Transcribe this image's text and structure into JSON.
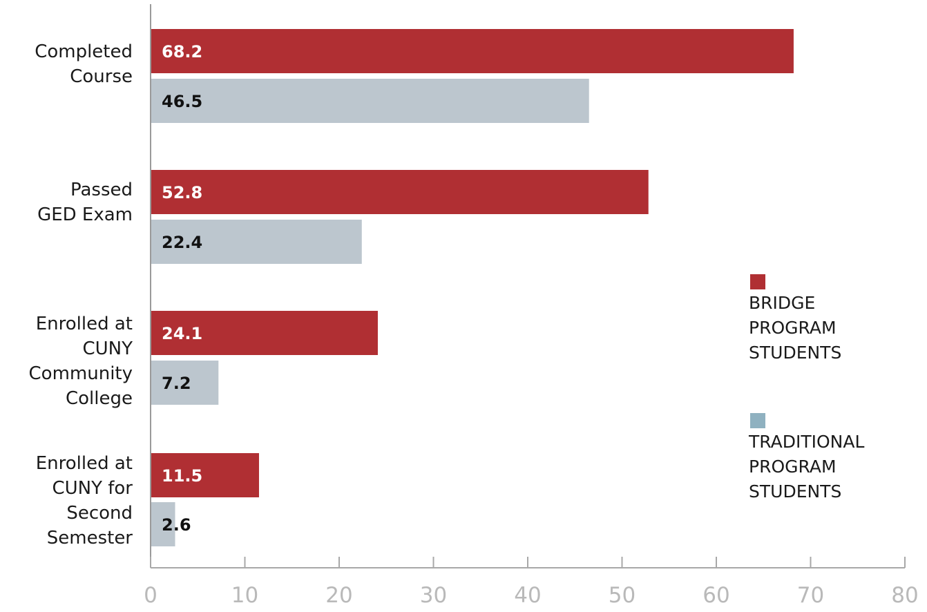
{
  "chart_data": {
    "type": "bar",
    "orientation": "horizontal",
    "categories": [
      [
        "Completed",
        "Course"
      ],
      [
        "Passed",
        "GED Exam"
      ],
      [
        "Enrolled at",
        "CUNY",
        "Community",
        "College"
      ],
      [
        "Enrolled at",
        "CUNY for",
        "Second",
        "Semester"
      ]
    ],
    "series": [
      {
        "name": [
          "BRIDGE",
          "PROGRAM",
          "STUDENTS"
        ],
        "color": "#b02f33",
        "value_label_color": "#ffffff",
        "values": [
          68.2,
          52.8,
          24.1,
          11.5
        ],
        "labels": [
          "68.2",
          "52.8",
          "24.1",
          "11.5"
        ]
      },
      {
        "name": [
          "TRADITIONAL",
          "PROGRAM",
          "STUDENTS"
        ],
        "color": "#bcc6ce",
        "legend_color": "#8fb1c0",
        "value_label_color": "#111111",
        "values": [
          46.5,
          22.4,
          7.2,
          2.6
        ],
        "labels": [
          "46.5",
          "22.4",
          "7.2",
          "2.6"
        ]
      }
    ],
    "xlim": [
      0,
      80
    ],
    "xticks": [
      0,
      10,
      20,
      30,
      40,
      50,
      60,
      70,
      80
    ],
    "xtick_labels": [
      "0",
      "10",
      "20",
      "30",
      "40",
      "50",
      "60",
      "70",
      "80"
    ],
    "grid": false,
    "legend_position": "right",
    "title": "",
    "xlabel": "",
    "ylabel": ""
  }
}
